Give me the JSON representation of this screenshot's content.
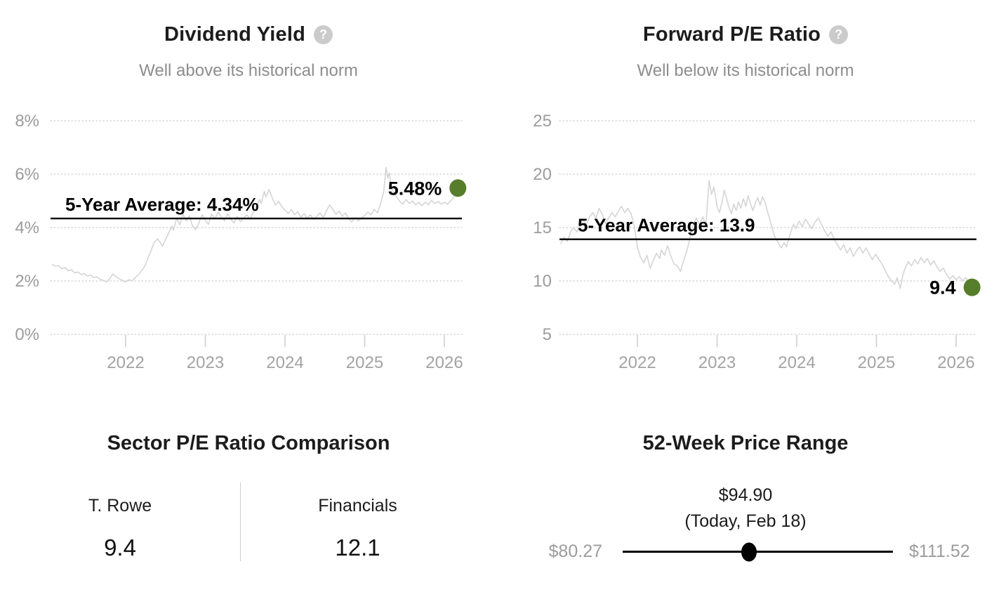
{
  "chart_data": [
    {
      "type": "line",
      "title": "Dividend Yield",
      "help_icon": "?",
      "subtitle": "Well above its historical norm",
      "line_color": "#d5d5d5",
      "marker_color": "#567d2a",
      "grid": "dotted-horizontal",
      "ylim": [
        0,
        8
      ],
      "y_ticks": [
        {
          "label": "8%",
          "value": 8
        },
        {
          "label": "6%",
          "value": 6
        },
        {
          "label": "4%",
          "value": 4
        },
        {
          "label": "2%",
          "value": 2
        },
        {
          "label": "0%",
          "value": 0
        }
      ],
      "x_ticks": [
        {
          "label": "2022",
          "value": 2022
        },
        {
          "label": "2023",
          "value": 2023
        },
        {
          "label": "2024",
          "value": 2024
        },
        {
          "label": "2025",
          "value": 2025
        },
        {
          "label": "2026",
          "value": 2026
        }
      ],
      "average": {
        "label": "5-Year Average: 4.34%",
        "value": 4.34
      },
      "current": {
        "label": "5.48%",
        "value": 5.48
      },
      "series": [
        [
          2021.08,
          2.62
        ],
        [
          2021.12,
          2.55
        ],
        [
          2021.16,
          2.58
        ],
        [
          2021.2,
          2.45
        ],
        [
          2021.24,
          2.5
        ],
        [
          2021.28,
          2.38
        ],
        [
          2021.32,
          2.42
        ],
        [
          2021.36,
          2.3
        ],
        [
          2021.4,
          2.34
        ],
        [
          2021.44,
          2.24
        ],
        [
          2021.48,
          2.28
        ],
        [
          2021.52,
          2.18
        ],
        [
          2021.56,
          2.22
        ],
        [
          2021.6,
          2.12
        ],
        [
          2021.64,
          2.16
        ],
        [
          2021.68,
          2.06
        ],
        [
          2021.72,
          2.02
        ],
        [
          2021.76,
          1.97
        ],
        [
          2021.8,
          2.08
        ],
        [
          2021.84,
          2.26
        ],
        [
          2021.88,
          2.16
        ],
        [
          2021.92,
          2.08
        ],
        [
          2021.96,
          2.02
        ],
        [
          2022.0,
          1.96
        ],
        [
          2022.04,
          2.05
        ],
        [
          2022.08,
          2.0
        ],
        [
          2022.12,
          2.12
        ],
        [
          2022.16,
          2.24
        ],
        [
          2022.2,
          2.38
        ],
        [
          2022.24,
          2.55
        ],
        [
          2022.28,
          2.85
        ],
        [
          2022.32,
          3.15
        ],
        [
          2022.36,
          3.45
        ],
        [
          2022.4,
          3.58
        ],
        [
          2022.44,
          3.42
        ],
        [
          2022.46,
          3.3
        ],
        [
          2022.5,
          3.55
        ],
        [
          2022.54,
          3.8
        ],
        [
          2022.58,
          4.05
        ],
        [
          2022.6,
          3.9
        ],
        [
          2022.64,
          4.35
        ],
        [
          2022.68,
          4.1
        ],
        [
          2022.72,
          4.5
        ],
        [
          2022.76,
          4.25
        ],
        [
          2022.8,
          4.45
        ],
        [
          2022.84,
          4.05
        ],
        [
          2022.88,
          3.92
        ],
        [
          2022.92,
          4.18
        ],
        [
          2022.96,
          4.48
        ],
        [
          2023.0,
          4.28
        ],
        [
          2023.04,
          4.12
        ],
        [
          2023.08,
          4.5
        ],
        [
          2023.12,
          4.32
        ],
        [
          2023.16,
          4.58
        ],
        [
          2023.2,
          4.4
        ],
        [
          2023.24,
          4.25
        ],
        [
          2023.28,
          4.52
        ],
        [
          2023.32,
          4.3
        ],
        [
          2023.36,
          4.18
        ],
        [
          2023.4,
          4.42
        ],
        [
          2023.44,
          4.22
        ],
        [
          2023.48,
          4.35
        ],
        [
          2023.52,
          4.48
        ],
        [
          2023.56,
          4.32
        ],
        [
          2023.6,
          4.55
        ],
        [
          2023.64,
          4.8
        ],
        [
          2023.68,
          5.05
        ],
        [
          2023.7,
          4.9
        ],
        [
          2023.74,
          5.35
        ],
        [
          2023.76,
          5.15
        ],
        [
          2023.8,
          5.42
        ],
        [
          2023.84,
          5.12
        ],
        [
          2023.88,
          4.85
        ],
        [
          2023.92,
          4.98
        ],
        [
          2023.96,
          4.78
        ],
        [
          2024.0,
          4.65
        ],
        [
          2024.04,
          4.52
        ],
        [
          2024.08,
          4.68
        ],
        [
          2024.12,
          4.48
        ],
        [
          2024.16,
          4.6
        ],
        [
          2024.2,
          4.38
        ],
        [
          2024.24,
          4.52
        ],
        [
          2024.28,
          4.35
        ],
        [
          2024.32,
          4.48
        ],
        [
          2024.36,
          4.3
        ],
        [
          2024.4,
          4.42
        ],
        [
          2024.44,
          4.55
        ],
        [
          2024.48,
          4.38
        ],
        [
          2024.52,
          4.62
        ],
        [
          2024.56,
          4.85
        ],
        [
          2024.6,
          4.68
        ],
        [
          2024.64,
          4.5
        ],
        [
          2024.68,
          4.62
        ],
        [
          2024.72,
          4.42
        ],
        [
          2024.76,
          4.55
        ],
        [
          2024.8,
          4.32
        ],
        [
          2024.84,
          4.22
        ],
        [
          2024.88,
          4.38
        ],
        [
          2024.92,
          4.25
        ],
        [
          2024.96,
          4.35
        ],
        [
          2025.0,
          4.45
        ],
        [
          2025.04,
          4.58
        ],
        [
          2025.08,
          4.48
        ],
        [
          2025.12,
          4.68
        ],
        [
          2025.16,
          4.55
        ],
        [
          2025.2,
          4.9
        ],
        [
          2025.24,
          5.35
        ],
        [
          2025.27,
          6.25
        ],
        [
          2025.29,
          5.85
        ],
        [
          2025.31,
          6.05
        ],
        [
          2025.33,
          5.6
        ],
        [
          2025.36,
          5.35
        ],
        [
          2025.4,
          5.15
        ],
        [
          2025.44,
          4.98
        ],
        [
          2025.48,
          4.88
        ],
        [
          2025.52,
          5.05
        ],
        [
          2025.56,
          4.9
        ],
        [
          2025.6,
          5.0
        ],
        [
          2025.64,
          4.85
        ],
        [
          2025.68,
          4.95
        ],
        [
          2025.72,
          4.82
        ],
        [
          2025.76,
          4.95
        ],
        [
          2025.8,
          4.85
        ],
        [
          2025.84,
          5.02
        ],
        [
          2025.88,
          4.9
        ],
        [
          2025.92,
          4.98
        ],
        [
          2025.96,
          4.88
        ],
        [
          2026.0,
          4.95
        ],
        [
          2026.04,
          4.88
        ],
        [
          2026.08,
          5.0
        ],
        [
          2026.12,
          5.15
        ],
        [
          2026.17,
          5.48
        ]
      ]
    },
    {
      "type": "line",
      "title": "Forward P/E Ratio",
      "help_icon": "?",
      "subtitle": "Well below its historical norm",
      "line_color": "#d5d5d5",
      "marker_color": "#567d2a",
      "grid": "dotted-horizontal",
      "ylim": [
        5,
        25
      ],
      "y_ticks": [
        {
          "label": "25",
          "value": 25
        },
        {
          "label": "20",
          "value": 20
        },
        {
          "label": "15",
          "value": 15
        },
        {
          "label": "10",
          "value": 10
        },
        {
          "label": "5",
          "value": 5
        }
      ],
      "x_ticks": [
        {
          "label": "2022",
          "value": 2022
        },
        {
          "label": "2023",
          "value": 2023
        },
        {
          "label": "2024",
          "value": 2024
        },
        {
          "label": "2025",
          "value": 2025
        },
        {
          "label": "2026",
          "value": 2026
        }
      ],
      "average": {
        "label": "5-Year Average: 13.9",
        "value": 13.9
      },
      "current": {
        "label": "9.4",
        "value": 9.4
      },
      "series": [
        [
          2021.04,
          13.5
        ],
        [
          2021.08,
          14.1
        ],
        [
          2021.12,
          13.7
        ],
        [
          2021.16,
          14.6
        ],
        [
          2021.2,
          15.0
        ],
        [
          2021.24,
          14.6
        ],
        [
          2021.28,
          15.2
        ],
        [
          2021.32,
          15.7
        ],
        [
          2021.36,
          15.3
        ],
        [
          2021.4,
          16.0
        ],
        [
          2021.44,
          16.4
        ],
        [
          2021.48,
          15.9
        ],
        [
          2021.52,
          16.8
        ],
        [
          2021.56,
          16.2
        ],
        [
          2021.6,
          15.4
        ],
        [
          2021.64,
          15.9
        ],
        [
          2021.68,
          16.4
        ],
        [
          2021.72,
          16.0
        ],
        [
          2021.76,
          16.5
        ],
        [
          2021.8,
          17.0
        ],
        [
          2021.84,
          16.4
        ],
        [
          2021.88,
          16.8
        ],
        [
          2021.92,
          16.3
        ],
        [
          2021.96,
          15.2
        ],
        [
          2022.0,
          13.2
        ],
        [
          2022.04,
          12.2
        ],
        [
          2022.08,
          11.7
        ],
        [
          2022.12,
          12.4
        ],
        [
          2022.16,
          11.2
        ],
        [
          2022.2,
          11.9
        ],
        [
          2022.24,
          12.6
        ],
        [
          2022.28,
          12.1
        ],
        [
          2022.3,
          12.9
        ],
        [
          2022.34,
          12.4
        ],
        [
          2022.38,
          13.3
        ],
        [
          2022.42,
          12.3
        ],
        [
          2022.46,
          11.6
        ],
        [
          2022.5,
          11.4
        ],
        [
          2022.54,
          10.9
        ],
        [
          2022.58,
          11.9
        ],
        [
          2022.62,
          12.8
        ],
        [
          2022.66,
          14.0
        ],
        [
          2022.7,
          15.3
        ],
        [
          2022.74,
          15.9
        ],
        [
          2022.78,
          15.2
        ],
        [
          2022.82,
          16.0
        ],
        [
          2022.86,
          15.3
        ],
        [
          2022.9,
          19.4
        ],
        [
          2022.93,
          18.1
        ],
        [
          2022.96,
          18.8
        ],
        [
          2023.0,
          17.0
        ],
        [
          2023.03,
          16.4
        ],
        [
          2023.06,
          17.3
        ],
        [
          2023.09,
          18.5
        ],
        [
          2023.12,
          17.7
        ],
        [
          2023.15,
          16.9
        ],
        [
          2023.18,
          16.3
        ],
        [
          2023.21,
          17.2
        ],
        [
          2023.24,
          16.6
        ],
        [
          2023.27,
          17.4
        ],
        [
          2023.3,
          16.8
        ],
        [
          2023.33,
          17.7
        ],
        [
          2023.36,
          17.0
        ],
        [
          2023.39,
          18.0
        ],
        [
          2023.42,
          17.2
        ],
        [
          2023.45,
          16.6
        ],
        [
          2023.48,
          17.3
        ],
        [
          2023.51,
          17.8
        ],
        [
          2023.54,
          17.1
        ],
        [
          2023.57,
          17.9
        ],
        [
          2023.6,
          17.4
        ],
        [
          2023.63,
          16.6
        ],
        [
          2023.66,
          15.8
        ],
        [
          2023.69,
          15.0
        ],
        [
          2023.72,
          14.2
        ],
        [
          2023.75,
          13.8
        ],
        [
          2023.78,
          13.4
        ],
        [
          2023.81,
          13.1
        ],
        [
          2023.84,
          13.6
        ],
        [
          2023.87,
          13.2
        ],
        [
          2023.9,
          14.0
        ],
        [
          2023.93,
          14.7
        ],
        [
          2023.96,
          15.3
        ],
        [
          2023.99,
          14.9
        ],
        [
          2024.03,
          15.6
        ],
        [
          2024.07,
          15.1
        ],
        [
          2024.11,
          15.8
        ],
        [
          2024.15,
          15.3
        ],
        [
          2024.19,
          14.9
        ],
        [
          2024.23,
          15.5
        ],
        [
          2024.27,
          15.9
        ],
        [
          2024.31,
          15.3
        ],
        [
          2024.35,
          14.7
        ],
        [
          2024.39,
          14.2
        ],
        [
          2024.43,
          14.6
        ],
        [
          2024.47,
          13.9
        ],
        [
          2024.51,
          13.4
        ],
        [
          2024.55,
          12.9
        ],
        [
          2024.59,
          13.4
        ],
        [
          2024.63,
          12.6
        ],
        [
          2024.67,
          13.1
        ],
        [
          2024.71,
          12.3
        ],
        [
          2024.75,
          12.8
        ],
        [
          2024.79,
          13.2
        ],
        [
          2024.83,
          12.6
        ],
        [
          2024.87,
          13.1
        ],
        [
          2024.91,
          12.5
        ],
        [
          2024.95,
          12.0
        ],
        [
          2024.99,
          12.5
        ],
        [
          2025.03,
          12.0
        ],
        [
          2025.07,
          11.6
        ],
        [
          2025.11,
          11.0
        ],
        [
          2025.15,
          10.4
        ],
        [
          2025.19,
          10.0
        ],
        [
          2025.23,
          9.7
        ],
        [
          2025.26,
          10.3
        ],
        [
          2025.3,
          9.3
        ],
        [
          2025.33,
          10.5
        ],
        [
          2025.36,
          11.2
        ],
        [
          2025.4,
          11.8
        ],
        [
          2025.44,
          11.4
        ],
        [
          2025.48,
          12.0
        ],
        [
          2025.52,
          11.6
        ],
        [
          2025.56,
          12.2
        ],
        [
          2025.6,
          11.7
        ],
        [
          2025.64,
          12.1
        ],
        [
          2025.68,
          11.5
        ],
        [
          2025.72,
          11.9
        ],
        [
          2025.76,
          11.3
        ],
        [
          2025.8,
          10.9
        ],
        [
          2025.84,
          11.2
        ],
        [
          2025.88,
          10.6
        ],
        [
          2025.92,
          10.2
        ],
        [
          2025.96,
          10.5
        ],
        [
          2026.0,
          10.1
        ],
        [
          2026.04,
          10.4
        ],
        [
          2026.08,
          10.0
        ],
        [
          2026.12,
          10.3
        ],
        [
          2026.16,
          9.9
        ],
        [
          2026.2,
          9.4
        ]
      ]
    }
  ],
  "sector_comparison": {
    "title": "Sector P/E Ratio Comparison",
    "columns": [
      {
        "label": "T. Rowe",
        "value": "9.4"
      },
      {
        "label": "Financials",
        "value": "12.1"
      }
    ]
  },
  "price_range": {
    "title": "52-Week Price Range",
    "current_price": "$94.90",
    "current_note": "(Today, Feb 18)",
    "low_label": "$80.27",
    "high_label": "$111.52",
    "low_value": 80.27,
    "high_value": 111.52,
    "current_value": 94.9
  }
}
